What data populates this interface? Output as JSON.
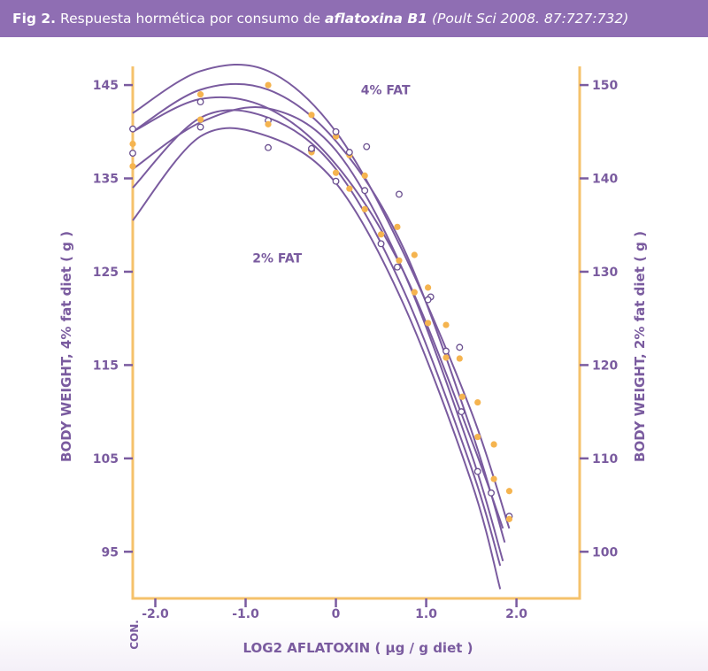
{
  "header": {
    "lead": "Fig 2.",
    "text_before": "Respuesta hormética por consumo de",
    "emphasis": "aflatoxina B1",
    "source": "(Poult Sci 2008. 87:727:732)"
  },
  "colors": {
    "banner": "#8f6eb3",
    "axis": "#f5c26b",
    "ticks": "#7a5b9f",
    "curve": "#7a5b9f",
    "label": "#7a5b9f",
    "filled_marker": "#f5b44f",
    "open_marker": "#6a4f8f"
  },
  "chart_data": {
    "type": "scatter",
    "xlabel": "LOG2 AFLATOXIN ( µg / g diet )",
    "ylabel_left": "BODY WEIGHT, 4% fat diet ( g )",
    "ylabel_right": "BODY WEIGHT, 2% fat diet ( g )",
    "control_label": "CON.",
    "xlim": [
      -2.25,
      2.7
    ],
    "ylim_left": [
      90,
      147
    ],
    "ylim_right": [
      95,
      152
    ],
    "x_ticks": [
      -2.0,
      -1.0,
      0,
      1.0,
      2.0
    ],
    "x_tick_labels": [
      "-2.0",
      "-1.0",
      "0",
      "1.0",
      "2.0"
    ],
    "y_left_ticks": [
      145,
      135,
      125,
      115,
      105,
      95
    ],
    "y_right_ticks": [
      150,
      140,
      130,
      120,
      110,
      100
    ],
    "annotations": [
      {
        "text": "4% FAT",
        "x": 0.55,
        "y": 144
      },
      {
        "text": "2% FAT",
        "x": -0.65,
        "y": 126
      }
    ],
    "series": [
      {
        "group": "4% fat",
        "curves": [
          {
            "x": [
              -2.25,
              -1.5,
              -0.75,
              0,
              0.75,
              1.5,
              1.92
            ],
            "y": [
              142,
              146.5,
              146.5,
              140,
              127,
              110,
              97.5
            ]
          },
          {
            "x": [
              -2.25,
              -1.5,
              -0.75,
              0,
              0.75,
              1.5,
              1.87
            ],
            "y": [
              140,
              144.5,
              144.5,
              139,
              127.5,
              108,
              96
            ]
          },
          {
            "x": [
              -2.25,
              -1.5,
              -0.75,
              0,
              0.75,
              1.5,
              1.85
            ],
            "y": [
              136,
              141,
              142.5,
              138,
              125,
              105.5,
              94
            ]
          }
        ],
        "filled": {
          "x": [
            -2.25,
            -1.5,
            -0.75,
            -0.27,
            0,
            0.15,
            0.32,
            0.68,
            0.87,
            1.02,
            1.22,
            1.37,
            1.57,
            1.75,
            1.92
          ],
          "y": [
            138.7,
            144,
            145,
            141.8,
            139.5,
            137.5,
            135.3,
            129.8,
            126.8,
            123.3,
            119.3,
            115.7,
            111,
            106.5,
            101.5
          ]
        },
        "open": {
          "x": [
            -2.25,
            -1.5,
            -0.75,
            -0.27,
            0,
            0.15,
            0.34,
            0.7,
            1.05,
            1.37,
            1.92
          ],
          "y": [
            140.3,
            143.2,
            141.2,
            138,
            140,
            137.8,
            138.4,
            133.3,
            122.3,
            116.9,
            98.8
          ]
        }
      },
      {
        "group": "2% fat",
        "curves": [
          {
            "x": [
              -2.25,
              -1.5,
              -0.75,
              0,
              0.75,
              1.5,
              1.85
            ],
            "y": [
              140,
              143.5,
              142.5,
              136.5,
              125,
              107,
              97.5
            ]
          },
          {
            "x": [
              -2.25,
              -1.5,
              -0.75,
              0,
              0.75,
              1.5,
              1.82
            ],
            "y": [
              134,
              141.5,
              141.5,
              136,
              123,
              104,
              93.5
            ]
          },
          {
            "x": [
              -2.25,
              -1.5,
              -0.75,
              0,
              0.75,
              1.5,
              1.82
            ],
            "y": [
              130.5,
              139.5,
              139.5,
              134.5,
              121.5,
              102.5,
              91
            ]
          }
        ],
        "filled": {
          "x": [
            -2.25,
            -1.5,
            -0.75,
            -0.27,
            0,
            0.15,
            0.32,
            0.5,
            0.7,
            0.87,
            1.02,
            1.22,
            1.4,
            1.57,
            1.75,
            1.92
          ],
          "y": [
            136.3,
            141.3,
            140.8,
            137.8,
            135.6,
            133.9,
            131.7,
            129,
            126.2,
            122.8,
            119.5,
            115.8,
            111.6,
            107.3,
            102.8,
            98.5
          ]
        },
        "open": {
          "x": [
            -2.25,
            -1.5,
            -0.75,
            -0.27,
            0,
            0.32,
            0.5,
            0.68,
            1.02,
            1.22,
            1.39,
            1.57,
            1.72
          ],
          "y": [
            137.7,
            140.5,
            138.3,
            138.2,
            134.7,
            133.7,
            128,
            125.5,
            122,
            116.5,
            110,
            103.6,
            101.3
          ]
        }
      }
    ]
  }
}
